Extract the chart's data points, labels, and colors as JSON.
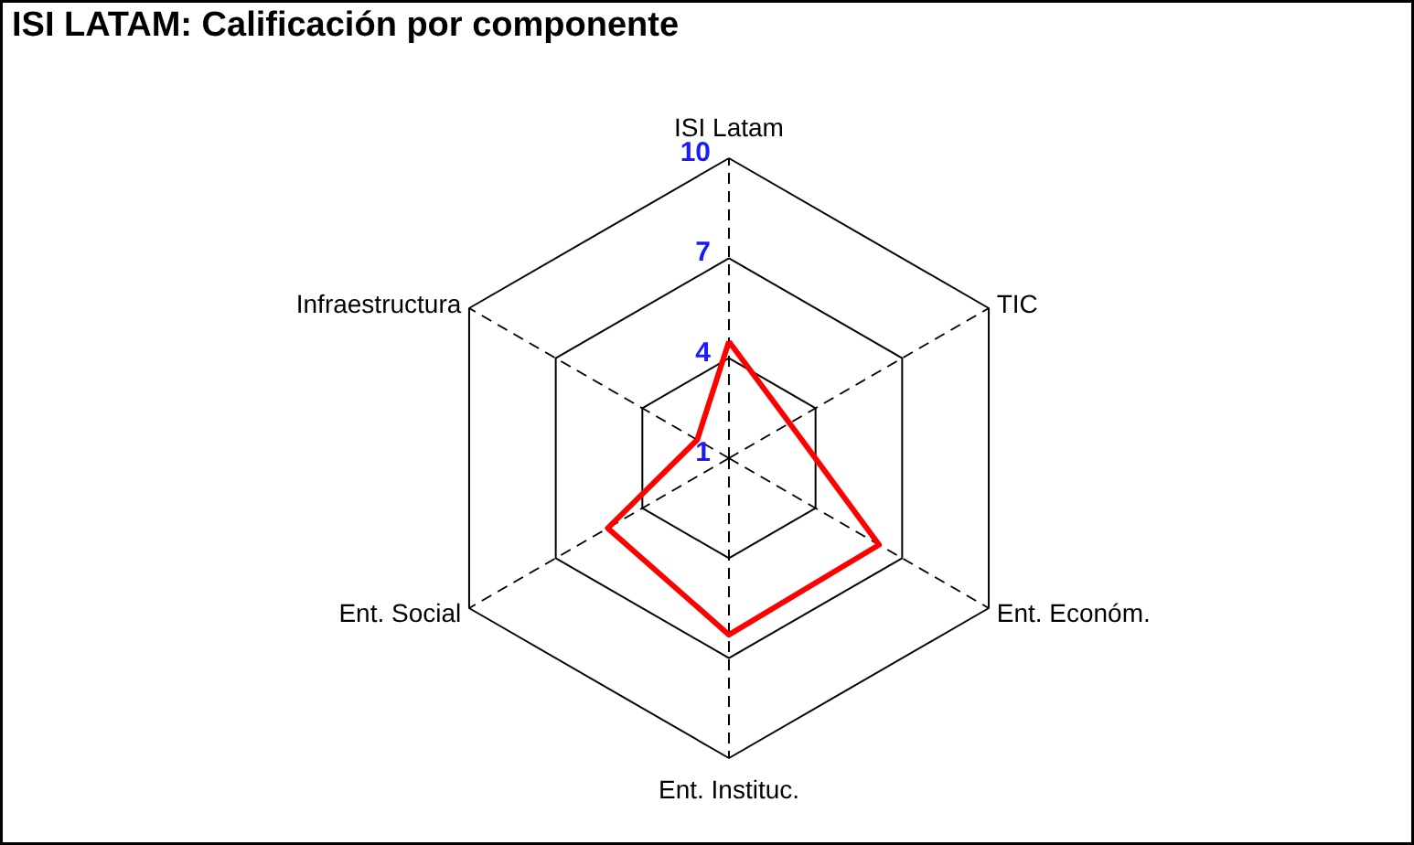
{
  "chart_data": {
    "type": "radar",
    "title": "ISI LATAM: Calificación por componente",
    "categories": [
      "ISI Latam",
      "TIC",
      "Ent. Económ.",
      "Ent. Instituc.",
      "Ent. Social",
      "Infraestructura"
    ],
    "series": [
      {
        "color": "#ff0000",
        "values": [
          4.5,
          3.1,
          6.2,
          6.3,
          5.2,
          2.1
        ]
      }
    ],
    "ylim": [
      1,
      10
    ],
    "yticks": [
      1,
      4,
      7,
      10
    ],
    "grid": true
  }
}
